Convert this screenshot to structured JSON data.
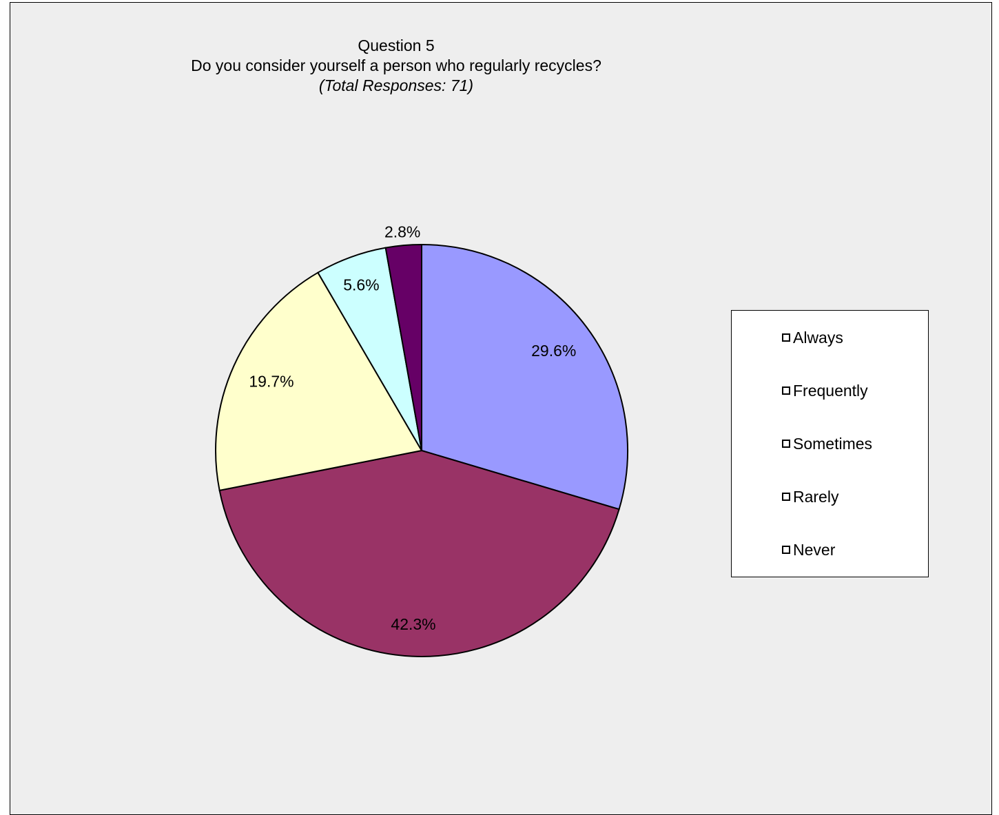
{
  "chart_data": {
    "type": "pie",
    "title": "Question 5",
    "subtitle": "Do you consider yourself a person who regularly recycles?",
    "note": "(Total Responses: 71)",
    "categories": [
      "Always",
      "Frequently",
      "Sometimes",
      "Rarely",
      "Never"
    ],
    "values": [
      29.6,
      42.3,
      19.7,
      5.6,
      2.8
    ],
    "data_labels": [
      "29.6%",
      "42.3%",
      "19.7%",
      "5.6%",
      "2.8%"
    ],
    "colors": [
      "#9999ff",
      "#993366",
      "#ffffcc",
      "#ccffff",
      "#660066"
    ],
    "legend_position": "right",
    "start_angle": "12 o'clock, clockwise"
  }
}
